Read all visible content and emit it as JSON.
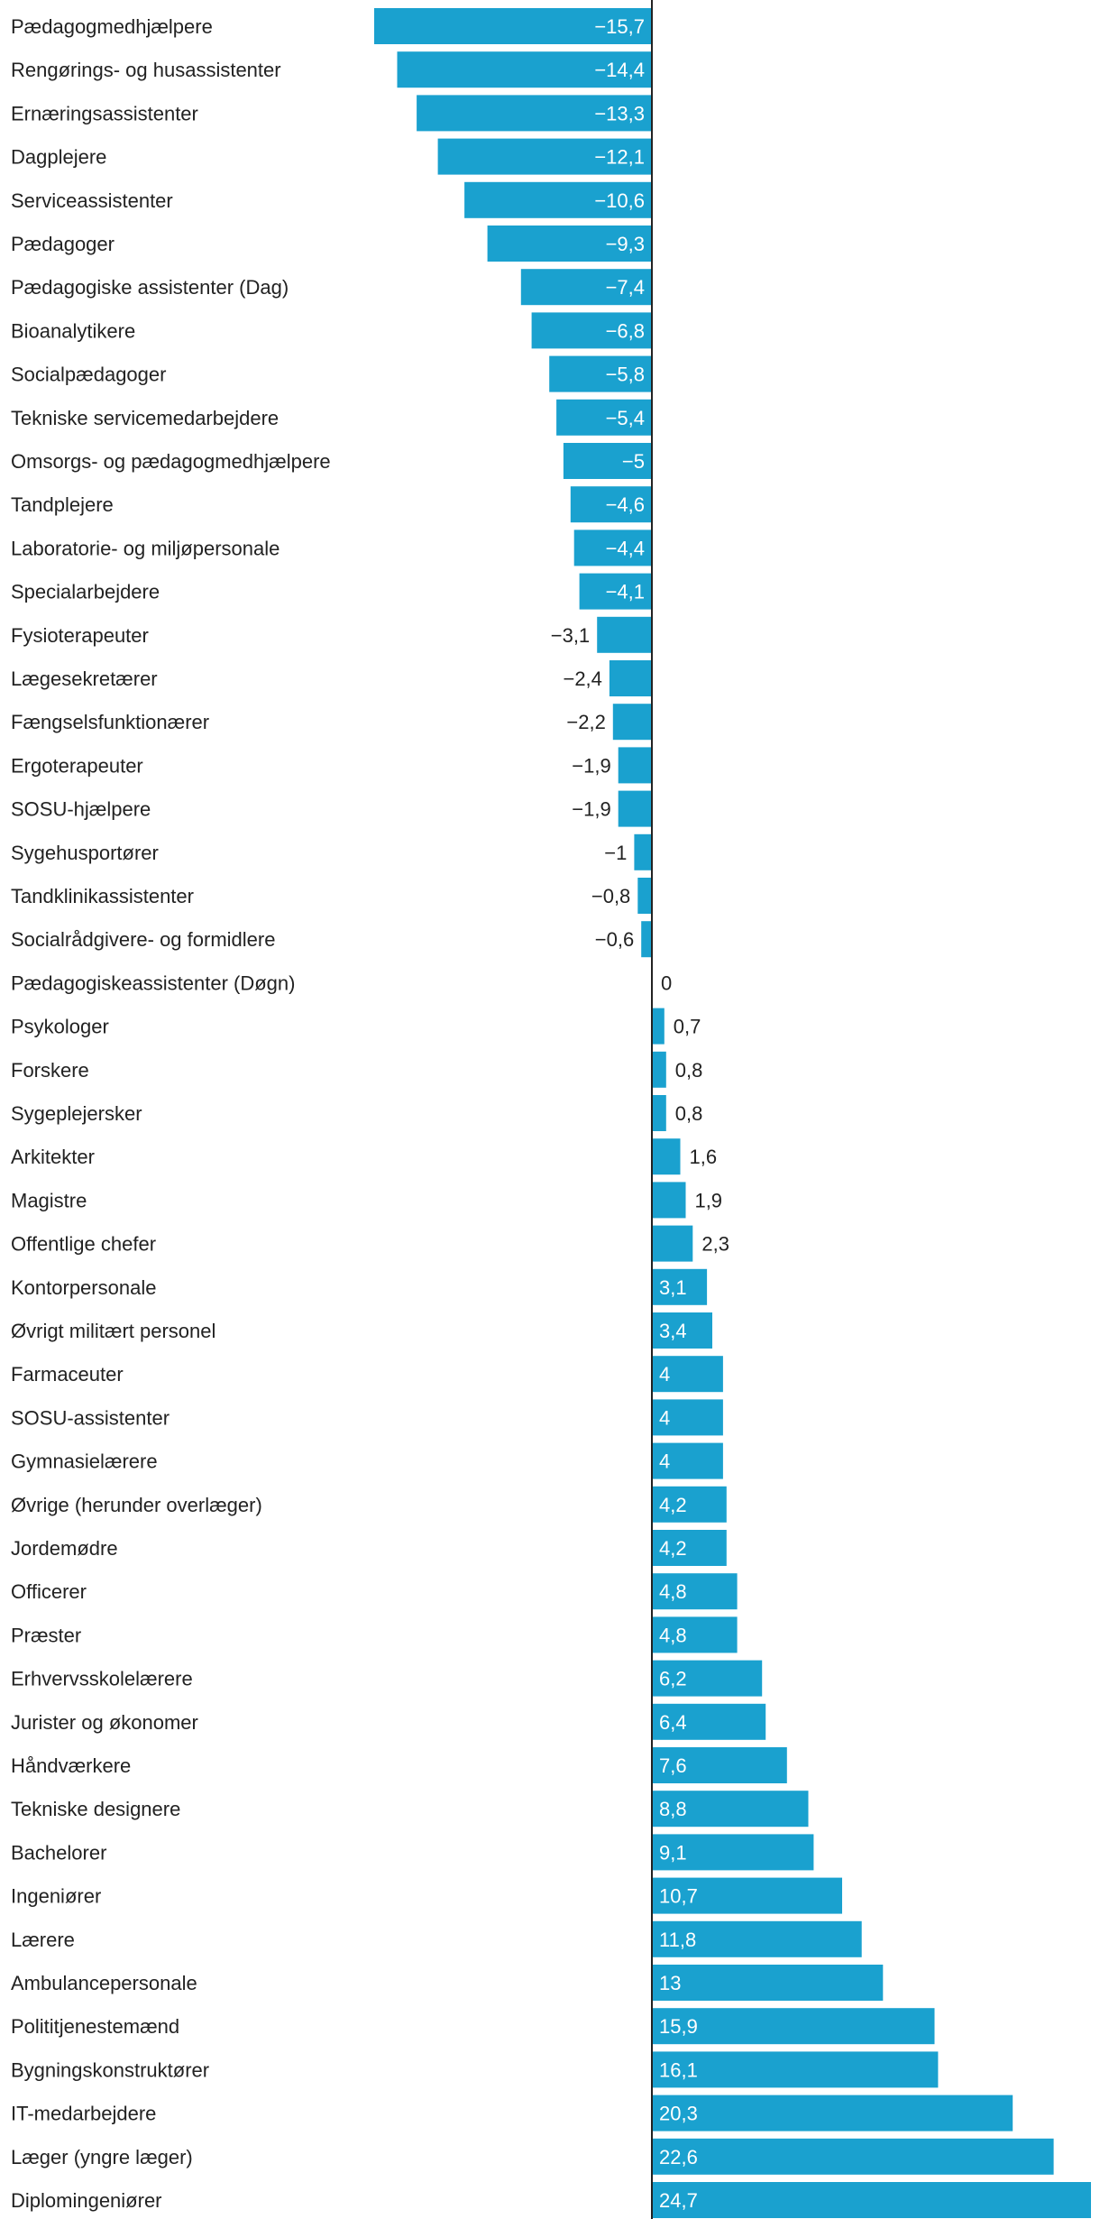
{
  "chart_data": {
    "type": "bar",
    "orientation": "horizontal",
    "title": "",
    "xlabel": "",
    "ylabel": "",
    "bar_color": "#1aa1cf",
    "axis_color": "#222222",
    "label_color": "#222222",
    "xlim": [
      -15.7,
      24.7
    ],
    "categories": [
      "Pædagogmedhjælpere",
      "Rengørings- og husassistenter",
      "Ernæringsassistenter",
      "Dagplejere",
      "Serviceassistenter",
      "Pædagoger",
      "Pædagogiske assistenter (Dag)",
      "Bioanalytikere",
      "Socialpædagoger",
      "Tekniske servicemedarbejdere",
      "Omsorgs- og pædagogmedhjælpere",
      "Tandplejere",
      "Laboratorie- og miljøpersonale",
      "Specialarbejdere",
      "Fysioterapeuter",
      "Lægesekretærer",
      "Fængselsfunktionærer",
      "Ergoterapeuter",
      "SOSU-hjælpere",
      "Sygehusportører",
      "Tandklinikassistenter",
      "Socialrådgivere- og formidlere",
      "Pædagogiskeassistenter (Døgn)",
      "Psykologer",
      "Forskere",
      "Sygeplejersker",
      "Arkitekter",
      "Magistre",
      "Offentlige chefer",
      "Kontorpersonale",
      "Øvrigt militært personel",
      "Farmaceuter",
      "SOSU-assistenter",
      "Gymnasielærere",
      "Øvrige (herunder overlæger)",
      "Jordemødre",
      "Officerer",
      "Præster",
      "Erhvervsskolelærere",
      "Jurister og økonomer",
      "Håndværkere",
      "Tekniske designere",
      "Bachelorer",
      "Ingeniører",
      "Lærere",
      "Ambulancepersonale",
      "Polititjenestemænd",
      "Bygningskonstruktører",
      "IT-medarbejdere",
      "Læger (yngre læger)",
      "Diplomingeniører"
    ],
    "values": [
      -15.7,
      -14.4,
      -13.3,
      -12.1,
      -10.6,
      -9.3,
      -7.4,
      -6.8,
      -5.8,
      -5.4,
      -5,
      -4.6,
      -4.4,
      -4.1,
      -3.1,
      -2.4,
      -2.2,
      -1.9,
      -1.9,
      -1,
      -0.8,
      -0.6,
      0,
      0.7,
      0.8,
      0.8,
      1.6,
      1.9,
      2.3,
      3.1,
      3.4,
      4,
      4,
      4,
      4.2,
      4.2,
      4.8,
      4.8,
      6.2,
      6.4,
      7.6,
      8.8,
      9.1,
      10.7,
      11.8,
      13,
      15.9,
      16.1,
      20.3,
      22.6,
      24.7
    ],
    "value_labels": [
      "−15,7",
      "−14,4",
      "−13,3",
      "−12,1",
      "−10,6",
      "−9,3",
      "−7,4",
      "−6,8",
      "−5,8",
      "−5,4",
      "−5",
      "−4,6",
      "−4,4",
      "−4,1",
      "−3,1",
      "−2,4",
      "−2,2",
      "−1,9",
      "−1,9",
      "−1",
      "−0,8",
      "−0,6",
      "0",
      "0,7",
      "0,8",
      "0,8",
      "1,6",
      "1,9",
      "2,3",
      "3,1",
      "3,4",
      "4",
      "4",
      "4",
      "4,2",
      "4,2",
      "4,8",
      "4,8",
      "6,2",
      "6,4",
      "7,6",
      "8,8",
      "9,1",
      "10,7",
      "11,8",
      "13",
      "15,9",
      "16,1",
      "20,3",
      "22,6",
      "24,7"
    ]
  }
}
